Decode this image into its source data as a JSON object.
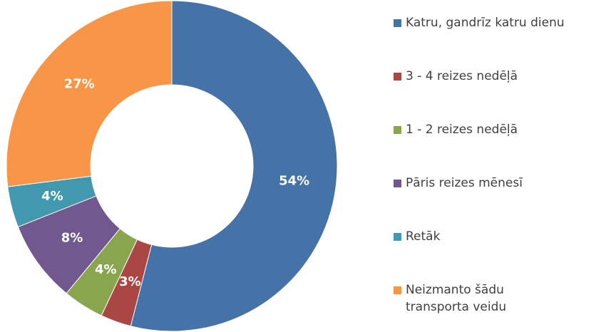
{
  "chart_data": {
    "type": "donut",
    "categories": [
      "Katru, gandrīz katru dienu",
      "3 - 4 reizes nedēļā",
      "1 - 2 reizes nedēļā",
      "Pāris reizes mēnesī",
      "Retāk",
      "Neizmanto šādu transporta veidu"
    ],
    "values": [
      54,
      3,
      4,
      8,
      4,
      27
    ],
    "value_labels": [
      "54%",
      "3%",
      "4%",
      "8%",
      "4%",
      "27%"
    ],
    "colors": [
      "#4572a7",
      "#aa4643",
      "#89a54e",
      "#71588f",
      "#4198af",
      "#f79646"
    ],
    "legend": "right"
  }
}
